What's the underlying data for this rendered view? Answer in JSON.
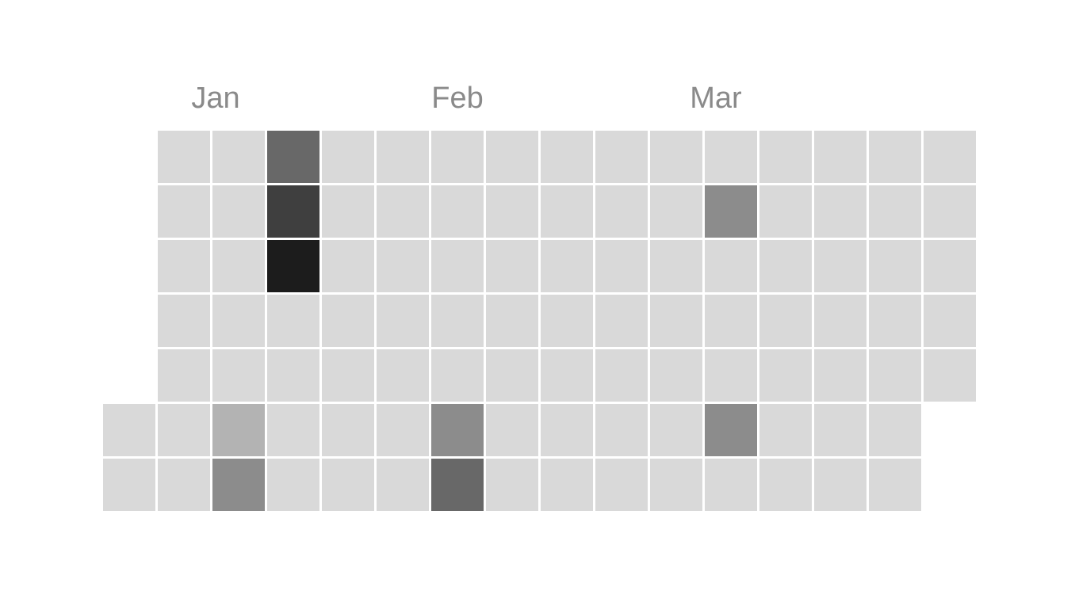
{
  "chart_data": {
    "type": "heatmap",
    "title": "",
    "month_labels": [
      {
        "label": "Jan",
        "week": 1
      },
      {
        "label": "Feb",
        "week": 6
      },
      {
        "label": "Mar",
        "week": 10
      }
    ],
    "weeks": 16,
    "days_per_week": 7,
    "first_week_start_day": 5,
    "last_week_end_day": 6,
    "levels": [
      {
        "level": 0,
        "color": "#d9d9d9"
      },
      {
        "level": 1,
        "color": "#b3b3b3"
      },
      {
        "level": 2,
        "color": "#8c8c8c"
      },
      {
        "level": 3,
        "color": "#686868"
      },
      {
        "level": 4,
        "color": "#3f3f3f"
      },
      {
        "level": 5,
        "color": "#1c1c1c"
      }
    ],
    "values": [
      [
        null,
        null,
        null,
        null,
        null,
        0,
        0
      ],
      [
        0,
        0,
        0,
        0,
        0,
        0,
        0
      ],
      [
        0,
        0,
        0,
        0,
        0,
        1,
        2
      ],
      [
        3,
        4,
        5,
        0,
        0,
        0,
        0
      ],
      [
        0,
        0,
        0,
        0,
        0,
        0,
        0
      ],
      [
        0,
        0,
        0,
        0,
        0,
        0,
        0
      ],
      [
        0,
        0,
        0,
        0,
        0,
        2,
        3
      ],
      [
        0,
        0,
        0,
        0,
        0,
        0,
        0
      ],
      [
        0,
        0,
        0,
        0,
        0,
        0,
        0
      ],
      [
        0,
        0,
        0,
        0,
        0,
        0,
        0
      ],
      [
        0,
        0,
        0,
        0,
        0,
        0,
        0
      ],
      [
        0,
        2,
        0,
        0,
        0,
        2,
        0
      ],
      [
        0,
        0,
        0,
        0,
        0,
        0,
        0
      ],
      [
        0,
        0,
        0,
        0,
        0,
        0,
        0
      ],
      [
        0,
        0,
        0,
        0,
        0,
        0,
        0
      ],
      [
        0,
        0,
        0,
        0,
        0,
        null,
        null
      ]
    ]
  }
}
